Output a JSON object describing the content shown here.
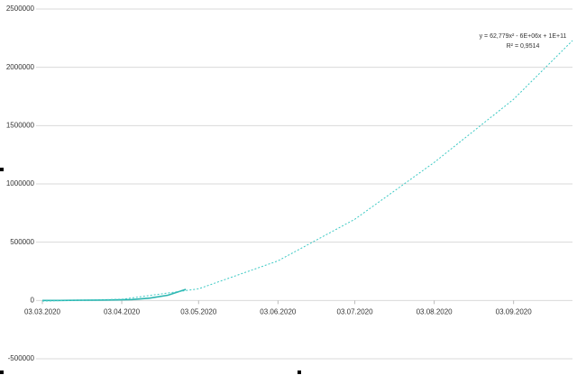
{
  "chart_data": {
    "type": "line",
    "annotations": [
      "y = 62,779x² - 6E+06x + 1E+11",
      "R² = 0,9514"
    ],
    "series": [
      {
        "color": "#2bb5b0",
        "style": "solid",
        "x": [
          "2020-03-03",
          "2020-03-10",
          "2020-03-17",
          "2020-03-24",
          "2020-03-31",
          "2020-04-07",
          "2020-04-14",
          "2020-04-21",
          "2020-04-28"
        ],
        "values": [
          100,
          500,
          1500,
          3000,
          5000,
          8000,
          20000,
          45000,
          95000
        ]
      },
      {
        "color": "#3cc9c4",
        "style": "dotted",
        "x": [
          "2020-03-03",
          "2020-04-03",
          "2020-05-03",
          "2020-06-03",
          "2020-07-03",
          "2020-08-03",
          "2020-09-03",
          "2020-09-26"
        ],
        "values": [
          -5000,
          10000,
          100000,
          340000,
          697000,
          1184000,
          1726000,
          2229000
        ]
      }
    ],
    "xlim": [
      "2020-03-03",
      "2020-09-26"
    ],
    "xticks": [
      {
        "value": "2020-03-03",
        "label": "03.03.2020"
      },
      {
        "value": "2020-04-03",
        "label": "03.04.2020"
      },
      {
        "value": "2020-05-03",
        "label": "03.05.2020"
      },
      {
        "value": "2020-06-03",
        "label": "03.06.2020"
      },
      {
        "value": "2020-07-03",
        "label": "03.07.2020"
      },
      {
        "value": "2020-08-03",
        "label": "03.08.2020"
      },
      {
        "value": "2020-09-03",
        "label": "03.09.2020"
      }
    ],
    "ylim": [
      -500000,
      2500000
    ],
    "yticks": [
      -500000,
      0,
      500000,
      1000000,
      1500000,
      2000000,
      2500000
    ],
    "grid": true
  }
}
